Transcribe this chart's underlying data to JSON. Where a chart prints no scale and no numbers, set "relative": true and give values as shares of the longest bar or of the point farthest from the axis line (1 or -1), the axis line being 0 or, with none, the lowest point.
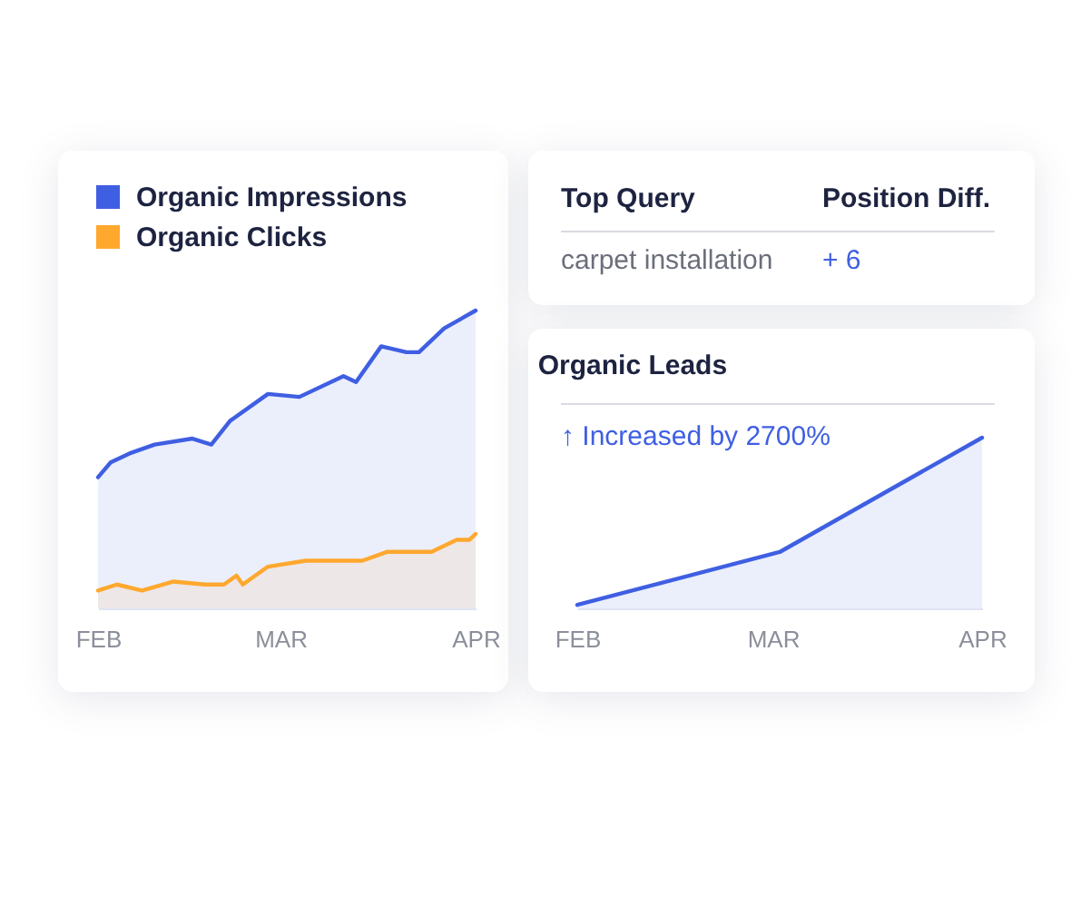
{
  "chart_data": [
    {
      "type": "area",
      "relative": true,
      "legend": "top left",
      "xlim": [
        "--02-01",
        "--04-01"
      ],
      "xticks": [
        {
          "value": "--02-01",
          "label": "FEB"
        },
        {
          "value": "--03-01",
          "label": "MAR"
        },
        {
          "value": "--04-01",
          "label": "APR"
        }
      ],
      "series": [
        {
          "name": "Organic Impressions",
          "color": "#3f5fe2",
          "x": [
            "--02-01",
            "--02-03",
            "--02-06",
            "--02-10",
            "--02-16",
            "--02-19",
            "--02-22",
            "--02-28",
            "--03-04",
            "--03-11",
            "--03-13",
            "--03-17",
            "--03-21",
            "--03-23",
            "--03-27",
            "--04-01"
          ],
          "values": [
            0.44,
            0.49,
            0.52,
            0.55,
            0.57,
            0.55,
            0.63,
            0.72,
            0.71,
            0.78,
            0.76,
            0.88,
            0.86,
            0.86,
            0.94,
            1
          ]
        },
        {
          "name": "Organic Clicks",
          "color": "#ffa82e",
          "x": [
            "--02-01",
            "--02-04",
            "--02-08",
            "--02-13",
            "--02-18",
            "--02-21",
            "--02-23",
            "--02-24",
            "--02-28",
            "--03-05",
            "--03-14",
            "--03-18",
            "--03-25",
            "--03-29",
            "--03-31",
            "--04-01"
          ],
          "values": [
            0.06,
            0.08,
            0.06,
            0.09,
            0.08,
            0.08,
            0.11,
            0.08,
            0.14,
            0.16,
            0.16,
            0.19,
            0.19,
            0.23,
            0.23,
            0.25
          ]
        }
      ]
    },
    {
      "type": "other",
      "annotations": [
        "Top Query",
        "Position Diff.",
        "carpet installation",
        "+ 6"
      ]
    },
    {
      "type": "area",
      "relative": true,
      "title": "Organic Leads",
      "annotations": [
        "↑ Increased by 2700%"
      ],
      "xlim": [
        "--02-01",
        "--04-01"
      ],
      "xticks": [
        {
          "value": "--02-01",
          "label": "FEB"
        },
        {
          "value": "--03-01",
          "label": "MAR"
        },
        {
          "value": "--04-01",
          "label": "APR"
        }
      ],
      "series": [
        {
          "color": "#3f5fe2",
          "x": [
            "--02-01",
            "--03-02",
            "--04-01"
          ],
          "values": [
            0.02,
            0.33,
            1
          ]
        }
      ]
    }
  ]
}
